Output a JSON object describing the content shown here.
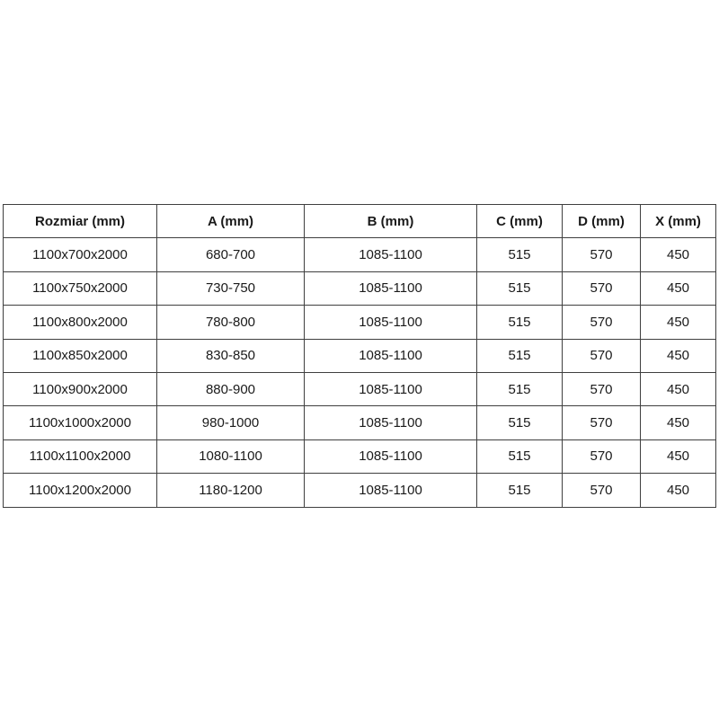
{
  "colors": {
    "background": "#ffffff",
    "border": "#3f3f3f",
    "text": "#1a1a1a"
  },
  "table": {
    "headers": [
      "Rozmiar (mm)",
      "A (mm)",
      "B (mm)",
      "C (mm)",
      "D (mm)",
      "X (mm)"
    ],
    "rows": [
      [
        "1100x700x2000",
        "680-700",
        "1085-1100",
        "515",
        "570",
        "450"
      ],
      [
        "1100x750x2000",
        "730-750",
        "1085-1100",
        "515",
        "570",
        "450"
      ],
      [
        "1100x800x2000",
        "780-800",
        "1085-1100",
        "515",
        "570",
        "450"
      ],
      [
        "1100x850x2000",
        "830-850",
        "1085-1100",
        "515",
        "570",
        "450"
      ],
      [
        "1100x900x2000",
        "880-900",
        "1085-1100",
        "515",
        "570",
        "450"
      ],
      [
        "1100x1000x2000",
        "980-1000",
        "1085-1100",
        "515",
        "570",
        "450"
      ],
      [
        "1100x1100x2000",
        "1080-1100",
        "1085-1100",
        "515",
        "570",
        "450"
      ],
      [
        "1100x1200x2000",
        "1180-1200",
        "1085-1100",
        "515",
        "570",
        "450"
      ]
    ]
  }
}
